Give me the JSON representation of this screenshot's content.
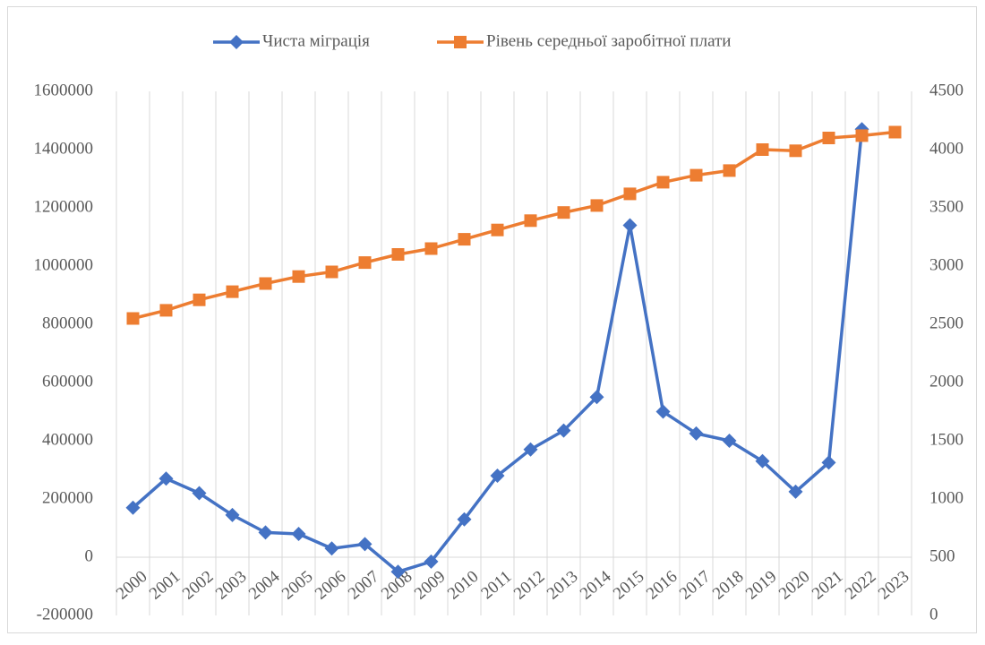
{
  "chart_data": {
    "type": "line",
    "categories": [
      "2000",
      "2001",
      "2002",
      "2003",
      "2004",
      "2005",
      "2006",
      "2007",
      "2008",
      "2009",
      "2010",
      "2011",
      "2012",
      "2013",
      "2014",
      "2015",
      "2016",
      "2017",
      "2018",
      "2019",
      "2020",
      "2021",
      "2022",
      "2023"
    ],
    "series": [
      {
        "name": "Чиста міграція",
        "color": "#4472c4",
        "marker": "diamond",
        "values": [
          170000,
          270000,
          220000,
          145000,
          85000,
          80000,
          30000,
          45000,
          -50000,
          -15000,
          130000,
          280000,
          370000,
          435000,
          550000,
          1140000,
          500000,
          425000,
          400000,
          330000,
          225000,
          325000,
          1470000,
          null
        ]
      },
      {
        "name": "Рівень середньої заробітної плати",
        "color": "#ed7d31",
        "marker": "square",
        "axis": "y2",
        "values": [
          2550,
          2620,
          2710,
          2780,
          2850,
          2910,
          2950,
          3030,
          3100,
          3150,
          3230,
          3310,
          3390,
          3460,
          3520,
          3620,
          3720,
          3780,
          3820,
          4000,
          3990,
          4100,
          4120,
          4150
        ]
      }
    ],
    "ylim": [
      -200000,
      1600000
    ],
    "yticks": [
      -200000,
      0,
      200000,
      400000,
      600000,
      800000,
      1000000,
      1200000,
      1400000,
      1600000
    ],
    "y2lim": [
      0,
      4500
    ],
    "y2ticks": [
      0,
      500,
      1000,
      1500,
      2000,
      2500,
      3000,
      3500,
      4000,
      4500
    ],
    "grid": "x",
    "legend": "top"
  }
}
